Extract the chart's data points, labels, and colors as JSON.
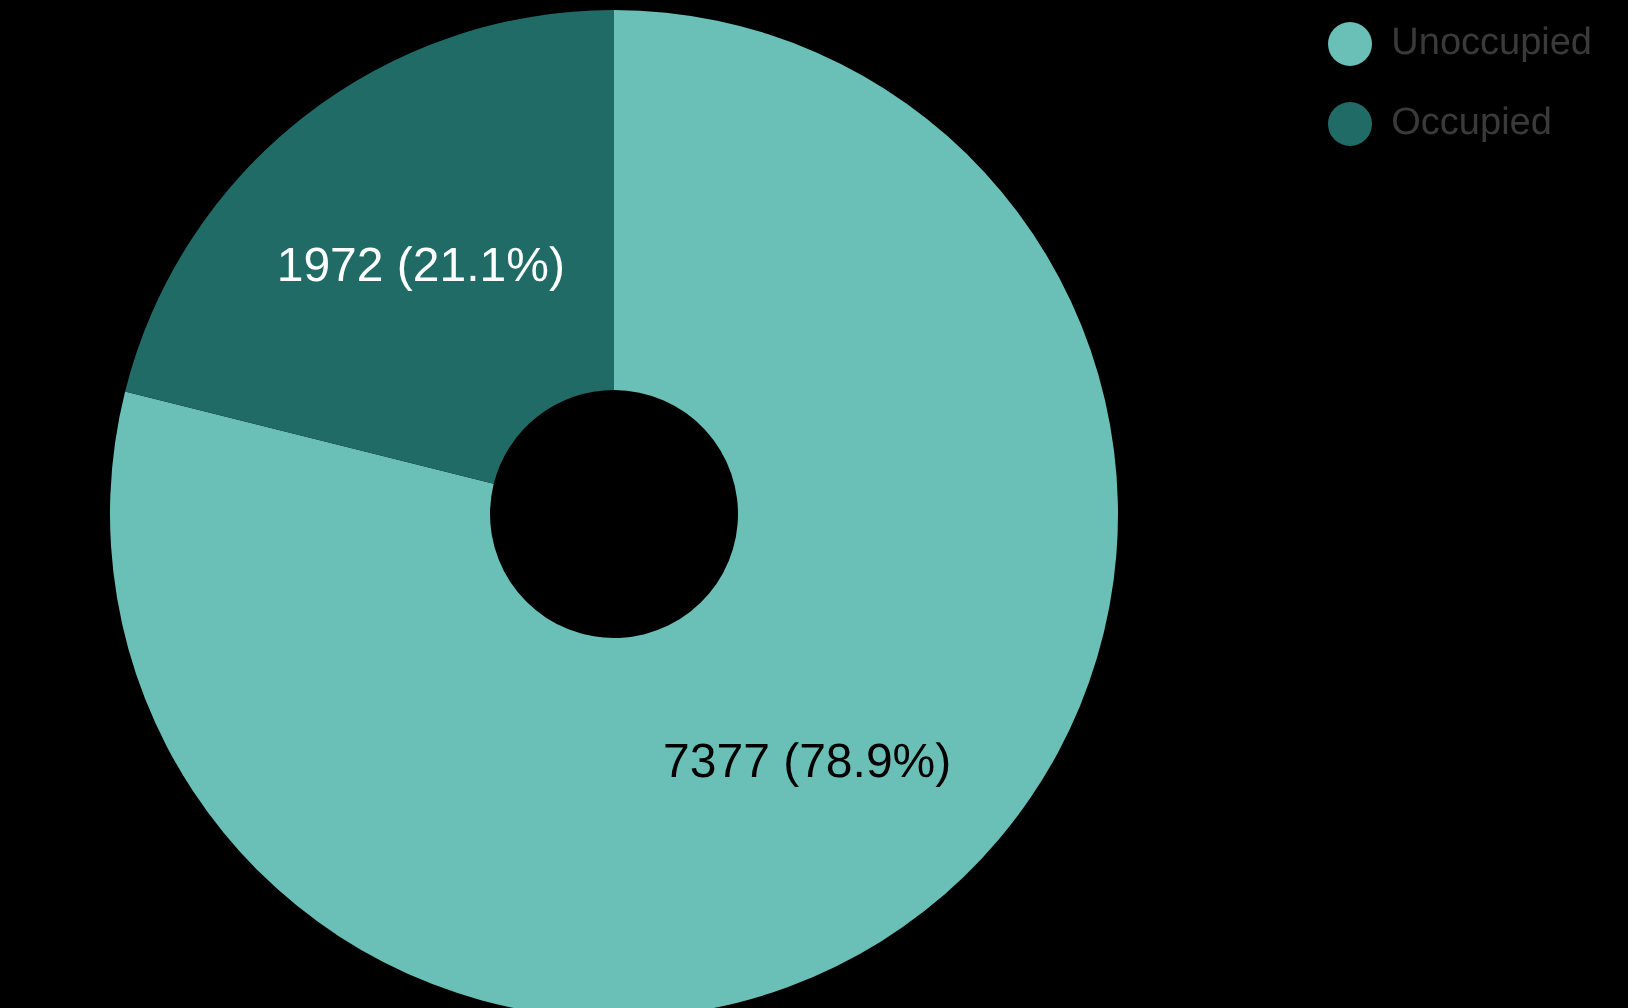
{
  "chart_data": {
    "type": "donut",
    "categories": [
      "Unoccupied",
      "Occupied"
    ],
    "values": [
      7377,
      1972
    ],
    "colors": [
      "#6abfb6",
      "#216b67"
    ],
    "value_labels": [
      "7377 (78.9%)",
      "1972 (21.1%)"
    ],
    "legend": "top right"
  }
}
